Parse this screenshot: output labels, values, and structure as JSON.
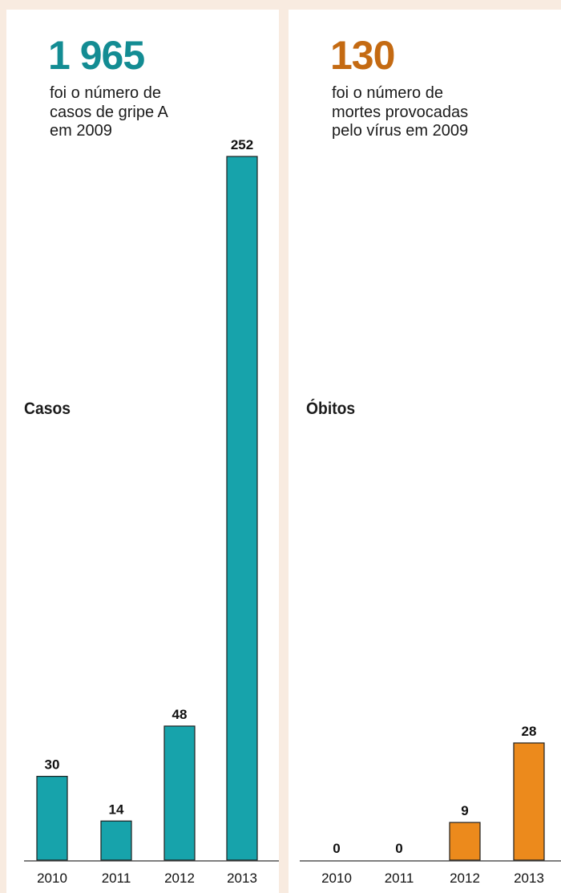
{
  "left": {
    "headline": "1 965",
    "subtitle": "foi o número de\ncasos de gripe A\nem 2009",
    "series_label": "Casos",
    "color": "#17a3ab"
  },
  "right": {
    "headline": "130",
    "subtitle": "foi o número de\nmortes provocadas\npelo vírus em 2009",
    "series_label": "Óbitos",
    "color": "#ec8a1c"
  },
  "chart_data": [
    {
      "type": "bar",
      "categories": [
        "2010",
        "2011",
        "2012",
        "2013"
      ],
      "series": [
        {
          "values": [
            30,
            14,
            48,
            252
          ]
        }
      ],
      "title": "",
      "xlabel": "",
      "ylabel": "Casos",
      "ylim": [
        0,
        252
      ],
      "grid": false,
      "legend": "none"
    },
    {
      "type": "bar",
      "categories": [
        "2010",
        "2011",
        "2012",
        "2013"
      ],
      "series": [
        {
          "values": [
            0,
            0,
            9,
            28
          ]
        }
      ],
      "title": "",
      "xlabel": "",
      "ylabel": "Óbitos",
      "ylim": [
        0,
        28
      ],
      "grid": false,
      "legend": "none"
    }
  ]
}
